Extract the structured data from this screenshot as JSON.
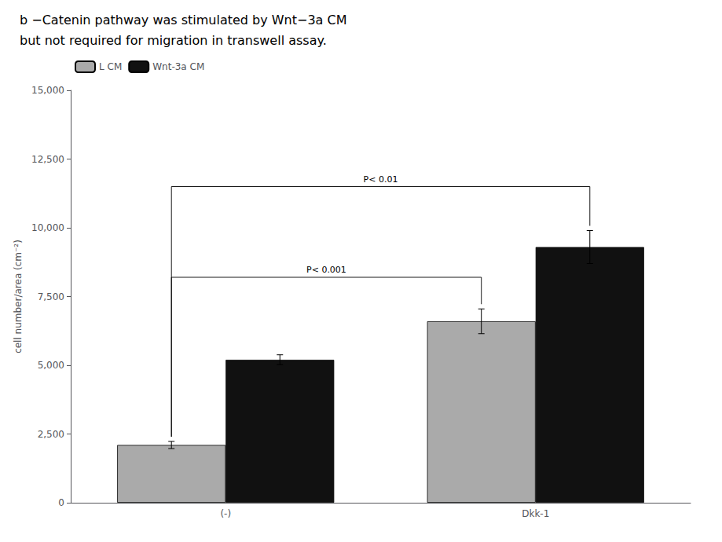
{
  "chart_data": {
    "type": "bar",
    "title": "b −Catenin pathway was stimulated by Wnt−3a CM",
    "subtitle": "but not required for migration in transwell assay.",
    "categories": [
      "(-)",
      "Dkk-1"
    ],
    "series": [
      {
        "name": "L CM",
        "color": "#aaaaaa",
        "values": [
          2100,
          6600
        ],
        "errors": [
          130,
          450
        ]
      },
      {
        "name": "Wnt-3a CM",
        "color": "#111111",
        "values": [
          5200,
          9300
        ],
        "errors": [
          180,
          600
        ]
      }
    ],
    "ylabel": "cell number/area (cm⁻²)",
    "ylim": [
      0,
      15000
    ],
    "yticks": [
      0,
      2500,
      5000,
      7500,
      10000,
      12500,
      15000
    ],
    "grid": false,
    "legend": "upper left",
    "annotations": [
      {
        "text": "P< 0.001",
        "y": 8200,
        "from": {
          "series": "L CM",
          "category": "(-)"
        },
        "to": {
          "series": "L CM",
          "category": "Dkk-1"
        }
      },
      {
        "text": "P< 0.01",
        "y": 11500,
        "from": {
          "series": "L CM",
          "category": "(-)"
        },
        "to": {
          "series": "Wnt-3a CM",
          "category": "Dkk-1"
        }
      }
    ]
  }
}
